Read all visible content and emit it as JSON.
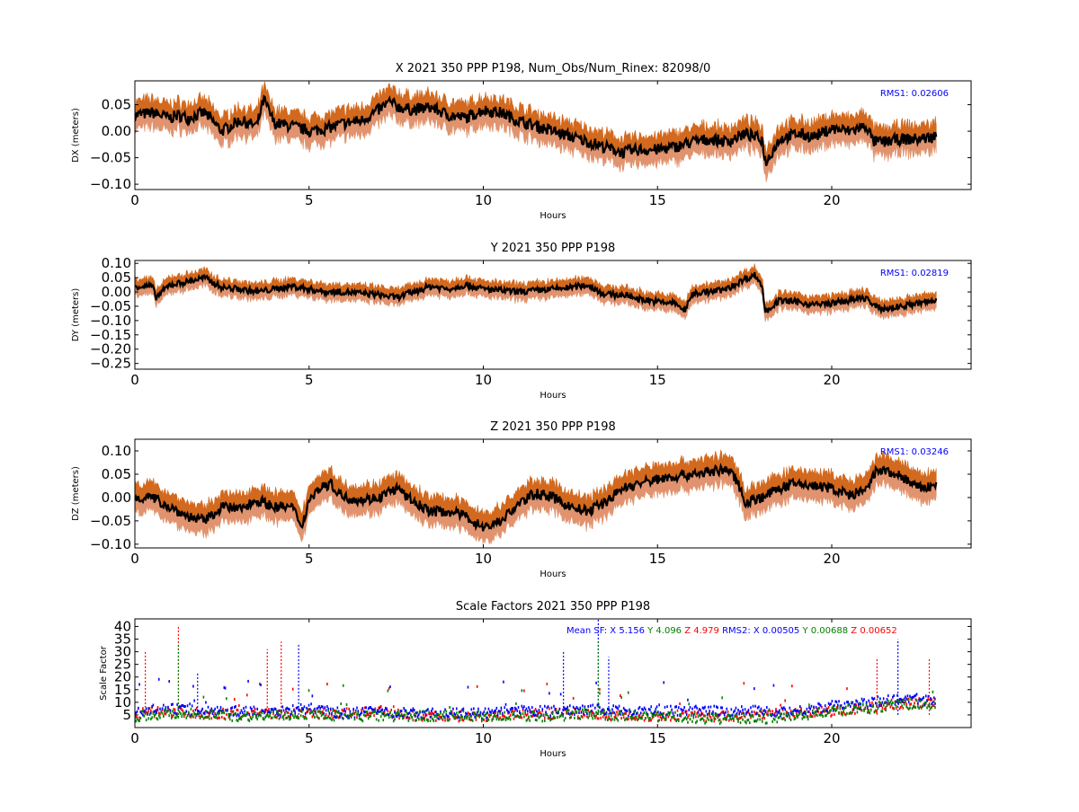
{
  "chart_data": [
    {
      "type": "line",
      "title": "X 2021 350 PPP  P198, Num_Obs/Num_Rinex: 82098/0",
      "xlabel": "Hours",
      "ylabel": "DX (meters)",
      "xlim": [
        0,
        24
      ],
      "ylim": [
        -0.11,
        0.095
      ],
      "xticks": [
        0,
        5,
        10,
        15,
        20
      ],
      "yticks": [
        0.05,
        0.0,
        -0.05,
        -0.1
      ],
      "ytick_labels": [
        "0.05",
        "0.00",
        "−0.05",
        "−0.10"
      ],
      "annotation": "RMS1:  0.02606",
      "band_upper_offset": 0.026,
      "band_lower_offset": -0.026,
      "series": [
        {
          "values_key": "center",
          "x": [
            0,
            0.5,
            1,
            1.25,
            1.5,
            2,
            2.5,
            3,
            3.5,
            3.7,
            4,
            4.5,
            5,
            5.5,
            6,
            6.5,
            7,
            7.3,
            7.6,
            8,
            8.5,
            9,
            9.5,
            10,
            10.5,
            11,
            11.5,
            12,
            12.5,
            13,
            13.5,
            14,
            14.5,
            15,
            15.5,
            16,
            16.5,
            17,
            17.5,
            18,
            18.1,
            18.5,
            19,
            19.5,
            20,
            20.5,
            21,
            21.2,
            21.5,
            22,
            22.5,
            23
          ],
          "y": [
            0.03,
            0.035,
            0.025,
            0.03,
            0.025,
            0.035,
            0.0,
            0.02,
            0.01,
            0.06,
            0.015,
            0.01,
            0.0,
            0.005,
            0.015,
            0.02,
            0.04,
            0.055,
            0.045,
            0.04,
            0.045,
            0.03,
            0.025,
            0.04,
            0.035,
            0.02,
            0.01,
            0.0,
            -0.01,
            -0.02,
            -0.03,
            -0.04,
            -0.035,
            -0.035,
            -0.03,
            -0.02,
            -0.015,
            -0.02,
            -0.005,
            -0.015,
            -0.06,
            -0.015,
            -0.005,
            -0.01,
            0.005,
            0.0,
            0.01,
            -0.02,
            -0.02,
            -0.015,
            -0.015,
            -0.01
          ]
        }
      ]
    },
    {
      "type": "line",
      "title": "Y 2021 350 PPP  P198",
      "xlabel": "Hours",
      "ylabel": "DY (meters)",
      "xlim": [
        0,
        24
      ],
      "ylim": [
        -0.27,
        0.11
      ],
      "xticks": [
        0,
        5,
        10,
        15,
        20
      ],
      "yticks": [
        0.1,
        0.05,
        0.0,
        -0.05,
        -0.1,
        -0.15,
        -0.2,
        -0.25
      ],
      "ytick_labels": [
        "0.10",
        "0.05",
        "0.00",
        "−0.05",
        "−0.10",
        "−0.15",
        "−0.20",
        "−0.25"
      ],
      "annotation": "RMS1:  0.02819",
      "band_upper_offset": 0.028,
      "band_lower_offset": -0.028,
      "series": [
        {
          "values_key": "center",
          "x": [
            0,
            0.5,
            0.6,
            1,
            1.5,
            2,
            2.5,
            3,
            3.5,
            4,
            4.5,
            5,
            5.5,
            6,
            6.5,
            7,
            7.5,
            8,
            8.5,
            9,
            9.5,
            10,
            10.5,
            11,
            11.5,
            12,
            12.5,
            13,
            13.5,
            14,
            14.5,
            15,
            15.5,
            15.8,
            16,
            16.5,
            17,
            17.5,
            17.8,
            18,
            18.1,
            18.5,
            19,
            19.5,
            20,
            20.5,
            21,
            21.2,
            21.5,
            22,
            22.5,
            23
          ],
          "y": [
            0.02,
            0.02,
            -0.02,
            0.025,
            0.035,
            0.05,
            0.015,
            0.01,
            0.0,
            0.01,
            0.02,
            0.01,
            0.0,
            0.0,
            -0.005,
            -0.01,
            -0.02,
            0.0,
            0.02,
            0.01,
            0.025,
            0.01,
            0.005,
            0.0,
            0.005,
            0.01,
            0.015,
            0.025,
            -0.01,
            -0.01,
            -0.025,
            -0.035,
            -0.04,
            -0.065,
            -0.005,
            0.0,
            0.01,
            0.045,
            0.06,
            0.02,
            -0.07,
            -0.03,
            -0.035,
            -0.045,
            -0.04,
            -0.03,
            -0.02,
            -0.05,
            -0.06,
            -0.05,
            -0.04,
            -0.03
          ]
        }
      ]
    },
    {
      "type": "line",
      "title": "Z 2021 350 PPP  P198",
      "xlabel": "Hours",
      "ylabel": "DZ (meters)",
      "xlim": [
        0,
        24
      ],
      "ylim": [
        -0.108,
        0.125
      ],
      "xticks": [
        0,
        5,
        10,
        15,
        20
      ],
      "yticks": [
        0.1,
        0.05,
        0.0,
        -0.05,
        -0.1
      ],
      "ytick_labels": [
        "0.10",
        "0.05",
        "0.00",
        "−0.05",
        "−0.10"
      ],
      "annotation": "RMS1:  0.03246",
      "band_upper_offset": 0.03,
      "band_lower_offset": -0.03,
      "series": [
        {
          "values_key": "center",
          "x": [
            0,
            0.5,
            1,
            1.5,
            2,
            2.5,
            3,
            3.5,
            4,
            4.5,
            4.8,
            5,
            5.3,
            5.6,
            6,
            6.5,
            7,
            7.5,
            8,
            8.5,
            9,
            9.5,
            10,
            10.5,
            11,
            11.5,
            12,
            12.5,
            13,
            13.5,
            14,
            14.5,
            15,
            15.5,
            16,
            16.5,
            17,
            17.3,
            17.5,
            18,
            18.5,
            19,
            19.5,
            20,
            20.5,
            21,
            21.3,
            21.6,
            22,
            22.5,
            23
          ],
          "y": [
            0.0,
            0.0,
            -0.02,
            -0.04,
            -0.05,
            -0.02,
            -0.025,
            -0.005,
            -0.02,
            -0.02,
            -0.06,
            -0.005,
            0.02,
            0.03,
            0.0,
            -0.005,
            0.0,
            0.02,
            -0.01,
            -0.03,
            -0.03,
            -0.04,
            -0.065,
            -0.05,
            -0.015,
            0.01,
            0.0,
            -0.02,
            -0.03,
            -0.01,
            0.02,
            0.03,
            0.04,
            0.045,
            0.05,
            0.055,
            0.06,
            0.035,
            -0.01,
            0.0,
            0.02,
            0.03,
            0.025,
            0.02,
            0.005,
            0.015,
            0.06,
            0.055,
            0.045,
            0.02,
            0.025
          ]
        }
      ]
    },
    {
      "type": "scatter",
      "title": "Scale Factors 2021 350 PPP  P198",
      "xlabel": "Hours",
      "ylabel": "Scale Factor",
      "xlim": [
        0,
        24
      ],
      "ylim": [
        0,
        43
      ],
      "xticks": [
        0,
        5,
        10,
        15,
        20
      ],
      "yticks": [
        40,
        35,
        30,
        25,
        20,
        15,
        10,
        5
      ],
      "annotation_items": [
        {
          "text": "Mean SF: X   5.156",
          "color": "#0000ff"
        },
        {
          "text": "Y   4.096",
          "color": "#008000"
        },
        {
          "text": "Z   4.979",
          "color": "#ff0000"
        },
        {
          "text": "RMS2: X  0.00505",
          "color": "#0000ff"
        },
        {
          "text": "Y  0.00688",
          "color": "#008000"
        },
        {
          "text": "Z  0.00652",
          "color": "#ff0000"
        }
      ],
      "series": [
        {
          "name": "Z",
          "color": "#ff0000",
          "x": [
            0,
            1,
            2,
            3,
            4,
            5,
            6,
            7,
            8,
            9,
            10,
            11,
            12,
            13,
            14,
            15,
            16,
            17,
            18,
            19,
            20,
            21,
            22,
            23
          ],
          "y": [
            5,
            6,
            5,
            5,
            5,
            5,
            5,
            6,
            4,
            4,
            4,
            5,
            5,
            5,
            4,
            4,
            4,
            4,
            5,
            5,
            6,
            7,
            9,
            9
          ]
        },
        {
          "name": "X",
          "color": "#0000ff",
          "x": [
            0,
            1,
            2,
            3,
            4,
            5,
            6,
            7,
            8,
            9,
            10,
            11,
            12,
            13,
            14,
            15,
            16,
            17,
            18,
            19,
            20,
            21,
            22,
            23
          ],
          "y": [
            6,
            7,
            6,
            6,
            6,
            7,
            5,
            6,
            5,
            5,
            5,
            6,
            6,
            7,
            6,
            6,
            6,
            6,
            6,
            6,
            8,
            9,
            11,
            10
          ]
        },
        {
          "name": "Y",
          "color": "#008000",
          "x": [
            0,
            1,
            2,
            3,
            4,
            5,
            6,
            7,
            8,
            9,
            10,
            11,
            12,
            13,
            14,
            15,
            16,
            17,
            18,
            19,
            20,
            21,
            22,
            23
          ],
          "y": [
            4,
            5,
            5,
            4,
            4,
            5,
            4,
            4,
            4,
            4,
            4,
            4,
            4,
            5,
            4,
            4,
            3,
            3,
            3,
            4,
            6,
            7,
            9,
            8
          ]
        }
      ],
      "spikes": [
        {
          "x": 0.3,
          "y": 30,
          "color": "#ff0000"
        },
        {
          "x": 1.25,
          "y": 40,
          "color": "#ff0000"
        },
        {
          "x": 1.25,
          "y": 33,
          "color": "#008000"
        },
        {
          "x": 1.8,
          "y": 22,
          "color": "#0000ff"
        },
        {
          "x": 3.8,
          "y": 31,
          "color": "#ff0000"
        },
        {
          "x": 4.2,
          "y": 34,
          "color": "#ff0000"
        },
        {
          "x": 4.7,
          "y": 33,
          "color": "#0000ff"
        },
        {
          "x": 12.3,
          "y": 30,
          "color": "#0000ff"
        },
        {
          "x": 13.3,
          "y": 43,
          "color": "#0000ff"
        },
        {
          "x": 13.3,
          "y": 34,
          "color": "#008000"
        },
        {
          "x": 13.6,
          "y": 28,
          "color": "#0000ff"
        },
        {
          "x": 21.3,
          "y": 27,
          "color": "#ff0000"
        },
        {
          "x": 21.9,
          "y": 35,
          "color": "#0000ff"
        },
        {
          "x": 22.8,
          "y": 27,
          "color": "#ff0000"
        }
      ]
    }
  ],
  "colors": {
    "band_upper": "#d2691e",
    "band_lower": "#e0936e",
    "center_line": "#000000",
    "annotation": "#0000ff"
  }
}
